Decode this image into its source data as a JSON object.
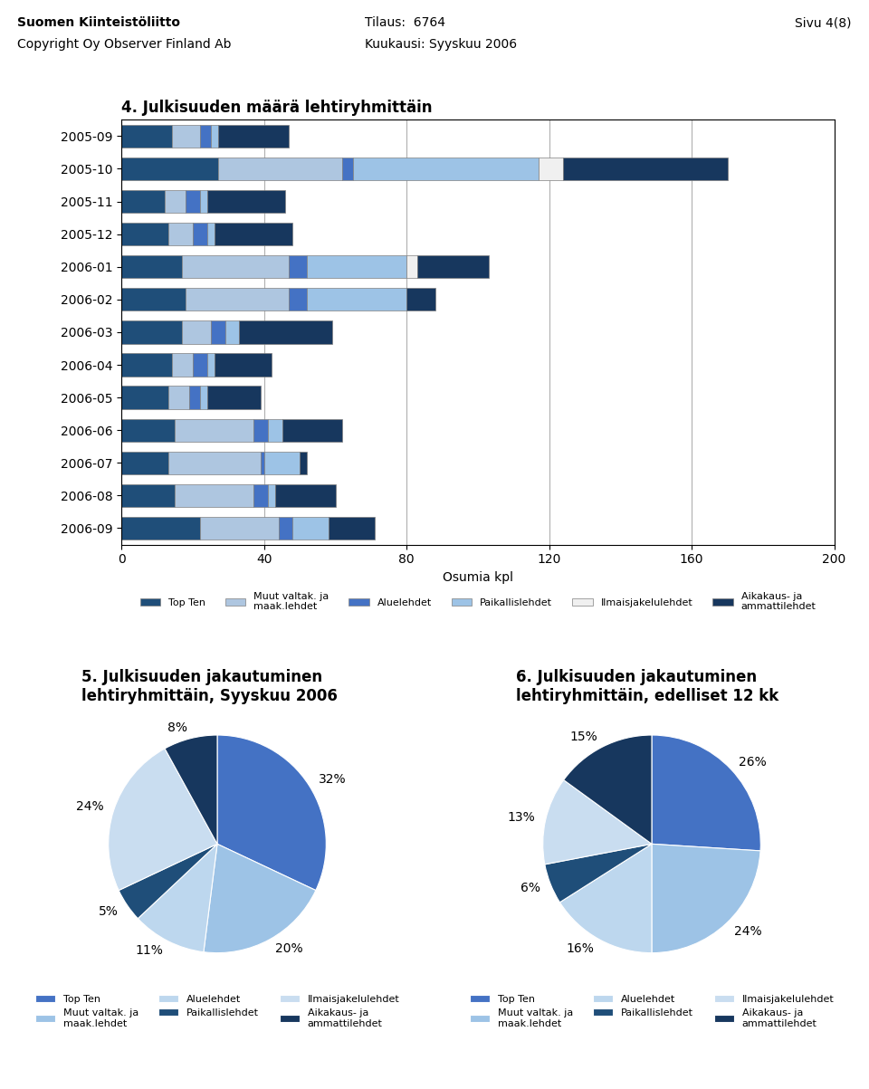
{
  "chart_data": [
    {
      "type": "bar",
      "orientation": "horizontal",
      "stacked": true,
      "title": "4. Julkisuuden määrä lehtiryhmittäin",
      "annotations": [
        "Suomen Kiinteistöliitto",
        "Copyright Oy Observer Finland Ab",
        "Tilaus:  6764",
        "Kuukausi: Syyskuu 2006",
        "Sivu 4(8)"
      ],
      "categories": [
        "2005-09",
        "2005-10",
        "2005-11",
        "2005-12",
        "2006-01",
        "2006-02",
        "2006-03",
        "2006-04",
        "2006-05",
        "2006-06",
        "2006-07",
        "2006-08",
        "2006-09"
      ],
      "series": [
        {
          "name": "Top Ten",
          "color": "#1f4e79",
          "values": [
            14,
            27,
            12,
            13,
            17,
            18,
            17,
            14,
            13,
            15,
            13,
            15,
            22
          ]
        },
        {
          "name": "Muut valtak. ja\nmaak.lehdet",
          "color": "#aec6e0",
          "values": [
            8,
            35,
            6,
            7,
            30,
            29,
            8,
            6,
            6,
            22,
            26,
            22,
            22
          ]
        },
        {
          "name": "Aluelehdet",
          "color": "#4472c4",
          "values": [
            3,
            3,
            4,
            4,
            5,
            5,
            4,
            4,
            3,
            4,
            1,
            4,
            4
          ]
        },
        {
          "name": "Paikallislehdet",
          "color": "#9dc3e6",
          "values": [
            2,
            52,
            2,
            2,
            28,
            28,
            4,
            2,
            2,
            4,
            10,
            2,
            10
          ]
        },
        {
          "name": "Ilmaisjakelulehdet",
          "color": "#f0f0f0",
          "values": [
            0,
            7,
            0,
            0,
            3,
            0,
            0,
            0,
            0,
            0,
            0,
            0,
            0
          ]
        },
        {
          "name": "Aikakaus- ja\nammattilehdet",
          "color": "#17375e",
          "values": [
            20,
            46,
            22,
            22,
            20,
            8,
            26,
            16,
            15,
            17,
            2,
            17,
            13
          ]
        }
      ],
      "xlim": [
        0,
        200
      ],
      "xticks": [
        0,
        40,
        80,
        120,
        160,
        200
      ],
      "xlabel": "Osumia kpl",
      "grid": true,
      "legend": "lower center"
    },
    {
      "type": "pie",
      "title": "5. Julkisuuden jakautuminen",
      "subtitle": "lehtiryhmittäin, Syyskuu 2006",
      "categories": [
        "Top Ten",
        "Muut valtak. ja\nmaak.lehdet",
        "Aluelehdet",
        "Paikallislehdet",
        "Ilmaisjakelulehdet",
        "Aikakaus- ja\nammattilehdet"
      ],
      "values": [
        32,
        20,
        11,
        5,
        24,
        8
      ],
      "value_labels": [
        "32%",
        "20%",
        "11%",
        "5%",
        "24%",
        "8%"
      ],
      "colors": [
        "#4472c4",
        "#9dc3e6",
        "#bdd7ee",
        "#1f4e79",
        "#c9ddf0",
        "#17375e"
      ],
      "data_labels": true,
      "legend": "lower center"
    },
    {
      "type": "pie",
      "title": "6. Julkisuuden jakautuminen",
      "subtitle": "lehtiryhmittäin, edelliset 12 kk",
      "categories": [
        "Top Ten",
        "Muut valtak. ja\nmaak.lehdet",
        "Aluelehdet",
        "Paikallislehdet",
        "Ilmaisjakelulehdet",
        "Aikakaus- ja\nammattilehdet"
      ],
      "values": [
        26,
        24,
        16,
        6,
        13,
        15
      ],
      "value_labels": [
        "26%",
        "24%",
        "16%",
        "6%",
        "13%",
        "15%"
      ],
      "colors": [
        "#4472c4",
        "#9dc3e6",
        "#bdd7ee",
        "#1f4e79",
        "#c9ddf0",
        "#17375e"
      ],
      "data_labels": true,
      "legend": "lower center"
    }
  ]
}
